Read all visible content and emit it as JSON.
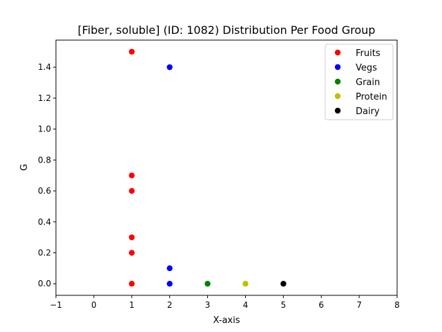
{
  "chart_data": {
    "type": "scatter",
    "title": "[Fiber, soluble] (ID: 1082) Distribution Per Food Group",
    "xlabel": "X-axis",
    "ylabel": "G",
    "xlim": [
      -1,
      8
    ],
    "ylim": [
      -0.075,
      1.575
    ],
    "xticks": [
      -1,
      0,
      1,
      2,
      3,
      4,
      5,
      6,
      7,
      8
    ],
    "yticks": [
      0.0,
      0.2,
      0.4,
      0.6,
      0.8,
      1.0,
      1.2,
      1.4
    ],
    "xtick_labels": [
      "−1",
      "0",
      "1",
      "2",
      "3",
      "4",
      "5",
      "6",
      "7",
      "8"
    ],
    "ytick_labels": [
      "0.0",
      "0.2",
      "0.4",
      "0.6",
      "0.8",
      "1.0",
      "1.2",
      "1.4"
    ],
    "grid": false,
    "legend_position": "top-right",
    "series": [
      {
        "name": "Fruits",
        "color": "#ff0000",
        "points": [
          [
            1,
            1.5
          ],
          [
            1,
            0.7
          ],
          [
            1,
            0.6
          ],
          [
            1,
            0.3
          ],
          [
            1,
            0.2
          ],
          [
            1,
            0.0
          ]
        ]
      },
      {
        "name": "Vegs",
        "color": "#0000ff",
        "points": [
          [
            2,
            1.4
          ],
          [
            2,
            0.1
          ],
          [
            2,
            0.0
          ]
        ]
      },
      {
        "name": "Grain",
        "color": "#008000",
        "points": [
          [
            3,
            0.0
          ]
        ]
      },
      {
        "name": "Protein",
        "color": "#bfbf00",
        "points": [
          [
            4,
            0.0
          ]
        ]
      },
      {
        "name": "Dairy",
        "color": "#000000",
        "points": [
          [
            5,
            0.0
          ]
        ]
      }
    ]
  }
}
